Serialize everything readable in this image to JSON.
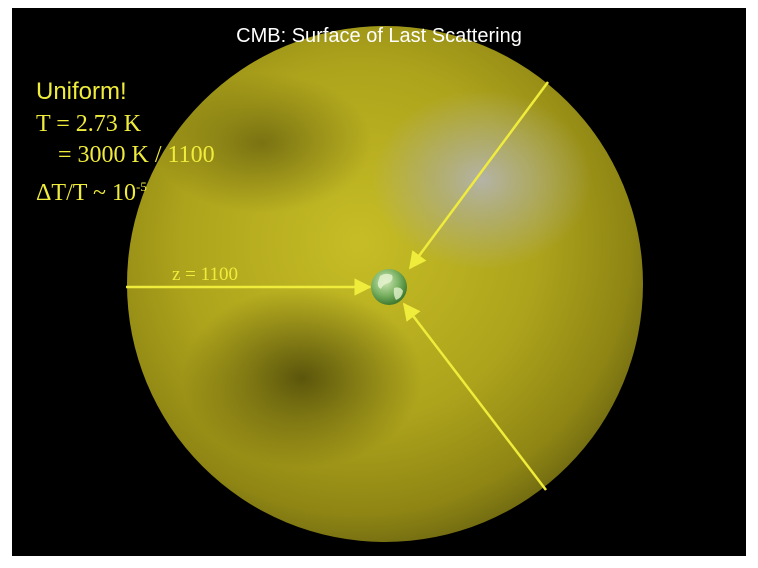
{
  "slide": {
    "title": "CMB: Surface of Last Scattering",
    "uniform_label": "Uniform!",
    "temperature": "T = 2.73 K",
    "temperature_ratio": "= 3000 K / 1100",
    "fluctuation_base": "ΔT/T ~ 10",
    "fluctuation_exponent": "-5",
    "redshift_label": "z = 1100"
  },
  "colors": {
    "background": "#000000",
    "sphere": "#b8b020",
    "sphere_shadow": "#5e5a0a",
    "hot_spot": "#a8a8a0",
    "arrow": "#f0ec3c",
    "text_accent": "#f0ec3c",
    "earth_ocean": "#6fa85a",
    "earth_land": "#d8ecb8"
  },
  "icons": [
    "earth-globe-icon",
    "arrow-icon"
  ]
}
